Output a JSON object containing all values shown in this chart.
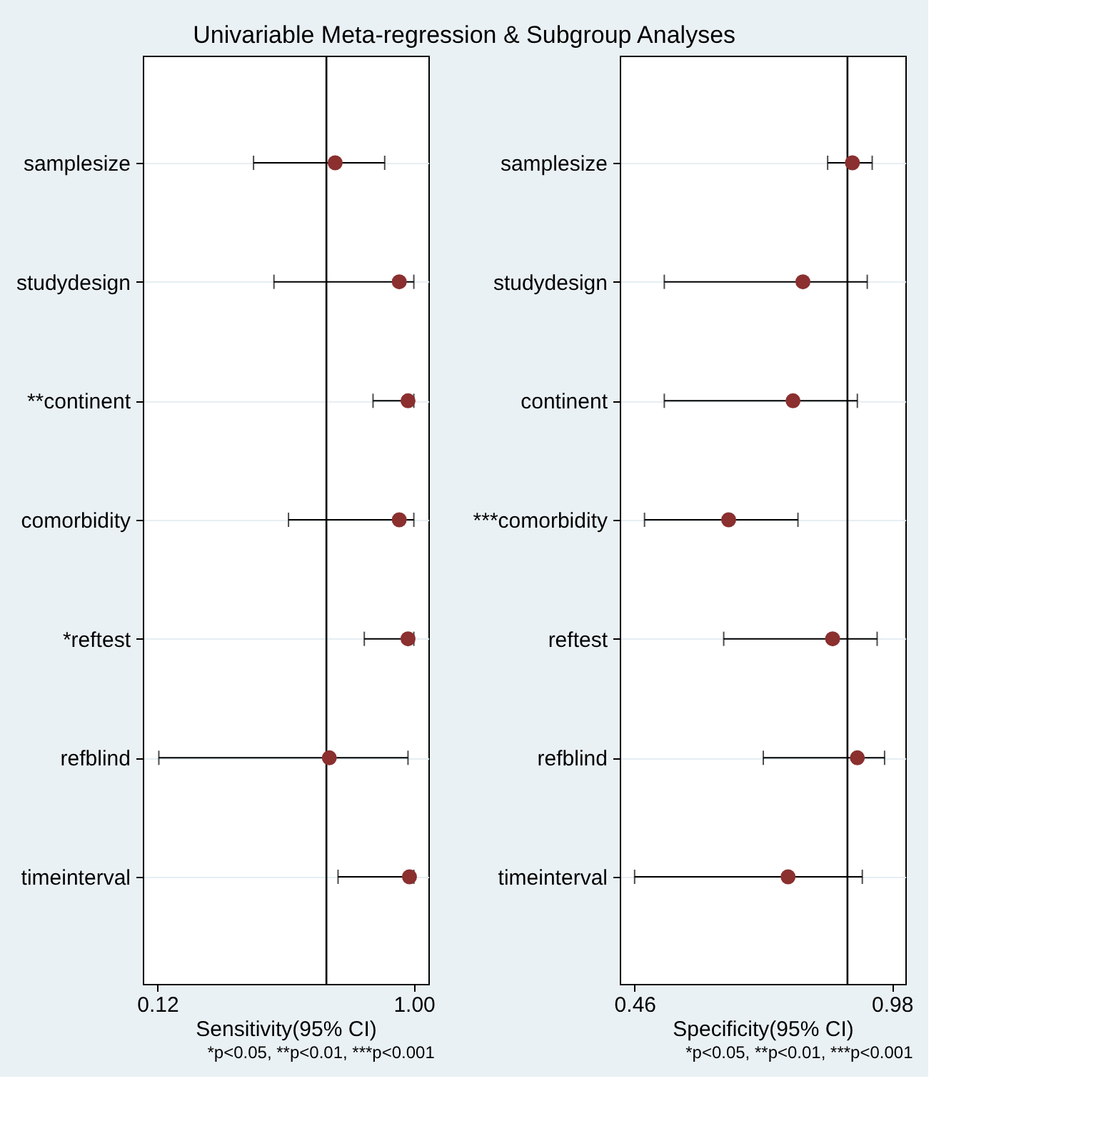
{
  "chart_data": [
    {
      "type": "scatter",
      "orientation": "horizontal",
      "title": "Univariable Meta-regression & Subgroup Analyses",
      "xlabel": "Sensitivity(95% CI)",
      "annotations": [
        "*p<0.05, **p<0.01, ***p<0.001"
      ],
      "categories": [
        "samplesize",
        "studydesign",
        "**continent",
        "comorbidity",
        "*reftest",
        "refblind",
        "timeinterval"
      ],
      "values": [
        0.73,
        0.95,
        0.98,
        0.95,
        0.98,
        0.71,
        0.985
      ],
      "errors": [
        [
          0.45,
          0.9
        ],
        [
          0.52,
          1.0
        ],
        [
          0.86,
          1.0
        ],
        [
          0.57,
          1.0
        ],
        [
          0.83,
          1.0
        ],
        [
          0.125,
          0.98
        ],
        [
          0.74,
          1.0
        ]
      ],
      "color": "#8b2f2f",
      "xlim": [
        0.07,
        1.05
      ],
      "xticks": [
        0.12,
        {
          "value": 1.0,
          "label": "1.00"
        }
      ],
      "ref_lines": [
        {
          "axis": "x",
          "value": 0.7,
          "color": "#000000"
        }
      ],
      "grid": "y",
      "marker": "circle"
    },
    {
      "type": "scatter",
      "orientation": "horizontal",
      "xlabel": "Specificity(95% CI)",
      "annotations": [
        "*p<0.05, **p<0.01, ***p<0.001"
      ],
      "categories": [
        "samplesize",
        "studydesign",
        "continent",
        "***comorbidity",
        "reftest",
        "refblind",
        "timeinterval"
      ],
      "values": [
        0.9,
        0.8,
        0.78,
        0.65,
        0.86,
        0.91,
        0.77
      ],
      "errors": [
        [
          0.85,
          0.94
        ],
        [
          0.52,
          0.93
        ],
        [
          0.52,
          0.91
        ],
        [
          0.48,
          0.79
        ],
        [
          0.64,
          0.95
        ],
        [
          0.72,
          0.965
        ],
        [
          0.46,
          0.92
        ]
      ],
      "color": "#8b2f2f",
      "xlim": [
        0.43,
        1.007
      ],
      "xticks": [
        0.46,
        0.98
      ],
      "ref_lines": [
        {
          "axis": "x",
          "value": 0.89,
          "color": "#000000"
        }
      ],
      "grid": "y",
      "marker": "circle"
    }
  ]
}
